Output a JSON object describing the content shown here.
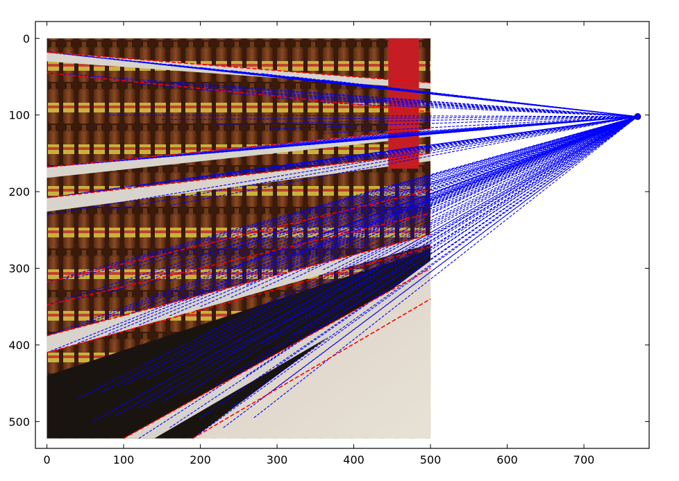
{
  "chart_data": {
    "type": "scatter",
    "title": "",
    "xlabel": "",
    "ylabel": "",
    "xlim": [
      -15,
      785
    ],
    "ylim": [
      535,
      -22
    ],
    "x_ticks": [
      0,
      100,
      200,
      300,
      400,
      500,
      600,
      700
    ],
    "y_ticks": [
      0,
      100,
      200,
      300,
      400,
      500
    ],
    "x_tick_labels": [
      "0",
      "100",
      "200",
      "300",
      "400",
      "500",
      "600",
      "700"
    ],
    "y_tick_labels": [
      "0",
      "100",
      "200",
      "300",
      "400",
      "500"
    ],
    "grid": false,
    "colors": {
      "lines": "#0000ff",
      "vanishing_point": "#0000ff",
      "detected_segments": "#ff0000",
      "axes": "#000000"
    },
    "background_image": {
      "content": "supermarket shelf of juice bottles in perspective",
      "extent_x": [
        0,
        500
      ],
      "extent_y": [
        522,
        0
      ]
    },
    "vanishing_point": {
      "x": 770,
      "y": 102
    },
    "converging_lines_start": [
      [
        0,
        18
      ],
      [
        10,
        19
      ],
      [
        20,
        20
      ],
      [
        40,
        22
      ],
      [
        80,
        26
      ],
      [
        120,
        30
      ],
      [
        160,
        34
      ],
      [
        200,
        38
      ],
      [
        240,
        42
      ],
      [
        280,
        46
      ],
      [
        320,
        50
      ],
      [
        360,
        54
      ],
      [
        0,
        45
      ],
      [
        60,
        52
      ],
      [
        120,
        60
      ],
      [
        180,
        66
      ],
      [
        240,
        72
      ],
      [
        300,
        78
      ],
      [
        360,
        84
      ],
      [
        80,
        100
      ],
      [
        150,
        106
      ],
      [
        220,
        112
      ],
      [
        290,
        118
      ],
      [
        360,
        124
      ],
      [
        0,
        168
      ],
      [
        20,
        166
      ],
      [
        40,
        164
      ],
      [
        80,
        160
      ],
      [
        100,
        158
      ],
      [
        140,
        154
      ],
      [
        180,
        150
      ],
      [
        220,
        146
      ],
      [
        260,
        142
      ],
      [
        300,
        138
      ],
      [
        340,
        134
      ],
      [
        380,
        130
      ],
      [
        420,
        126
      ],
      [
        0,
        208
      ],
      [
        30,
        204
      ],
      [
        60,
        200
      ],
      [
        120,
        193
      ],
      [
        180,
        186
      ],
      [
        240,
        179
      ],
      [
        300,
        172
      ],
      [
        360,
        165
      ],
      [
        420,
        158
      ],
      [
        0,
        230
      ],
      [
        80,
        224
      ],
      [
        160,
        218
      ],
      [
        0,
        318
      ],
      [
        20,
        315
      ],
      [
        40,
        312
      ],
      [
        80,
        305
      ],
      [
        120,
        298
      ],
      [
        160,
        290
      ],
      [
        200,
        283
      ],
      [
        240,
        276
      ],
      [
        280,
        269
      ],
      [
        320,
        262
      ],
      [
        360,
        255
      ],
      [
        400,
        248
      ],
      [
        0,
        348
      ],
      [
        40,
        340
      ],
      [
        80,
        332
      ],
      [
        120,
        324
      ],
      [
        160,
        316
      ],
      [
        200,
        308
      ],
      [
        240,
        300
      ],
      [
        280,
        292
      ],
      [
        320,
        284
      ],
      [
        360,
        276
      ],
      [
        0,
        388
      ],
      [
        30,
        380
      ],
      [
        60,
        372
      ],
      [
        100,
        362
      ],
      [
        140,
        352
      ],
      [
        180,
        342
      ],
      [
        220,
        332
      ],
      [
        260,
        322
      ],
      [
        300,
        312
      ],
      [
        340,
        302
      ],
      [
        380,
        292
      ],
      [
        0,
        410
      ],
      [
        40,
        398
      ],
      [
        80,
        386
      ],
      [
        120,
        374
      ],
      [
        160,
        362
      ],
      [
        200,
        350
      ],
      [
        240,
        338
      ],
      [
        280,
        326
      ],
      [
        320,
        314
      ],
      [
        360,
        302
      ],
      [
        40,
        470
      ],
      [
        70,
        462
      ],
      [
        100,
        452
      ],
      [
        130,
        444
      ],
      [
        160,
        434
      ],
      [
        200,
        422
      ],
      [
        240,
        410
      ],
      [
        280,
        398
      ],
      [
        320,
        386
      ],
      [
        60,
        500
      ],
      [
        90,
        492
      ],
      [
        120,
        482
      ],
      [
        150,
        474
      ],
      [
        180,
        464
      ],
      [
        220,
        452
      ],
      [
        260,
        440
      ],
      [
        300,
        428
      ],
      [
        120,
        522
      ],
      [
        160,
        508
      ],
      [
        200,
        495
      ],
      [
        240,
        482
      ],
      [
        280,
        470
      ],
      [
        190,
        522
      ],
      [
        230,
        508
      ],
      [
        270,
        495
      ]
    ],
    "detected_segments": [
      [
        [
          0,
          18
        ],
        [
          500,
          58
        ]
      ],
      [
        [
          0,
          45
        ],
        [
          500,
          96
        ]
      ],
      [
        [
          0,
          168
        ],
        [
          500,
          118
        ]
      ],
      [
        [
          0,
          208
        ],
        [
          500,
          150
        ]
      ],
      [
        [
          0,
          318
        ],
        [
          500,
          198
        ]
      ],
      [
        [
          0,
          348
        ],
        [
          500,
          228
        ]
      ],
      [
        [
          0,
          388
        ],
        [
          500,
          256
        ]
      ],
      [
        [
          0,
          410
        ],
        [
          500,
          272
        ]
      ],
      [
        [
          100,
          522
        ],
        [
          500,
          300
        ]
      ],
      [
        [
          190,
          522
        ],
        [
          500,
          340
        ]
      ]
    ]
  }
}
